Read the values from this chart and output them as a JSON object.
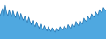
{
  "values": [
    88,
    95,
    102,
    85,
    108,
    95,
    88,
    100,
    92,
    87,
    98,
    90,
    85,
    96,
    88,
    82,
    93,
    85,
    80,
    88,
    82,
    76,
    86,
    78,
    72,
    80,
    73,
    68,
    77,
    70,
    65,
    73,
    67,
    62,
    70,
    64,
    60,
    68,
    63,
    59,
    66,
    61,
    58,
    65,
    62,
    60,
    68,
    64,
    62,
    70,
    66,
    63,
    72,
    68,
    65,
    74,
    70,
    68,
    78,
    73,
    70,
    80,
    76,
    73,
    84,
    80,
    78,
    88,
    84,
    82,
    92,
    88,
    86,
    96,
    92,
    90,
    100,
    96,
    94,
    104,
    100,
    98
  ],
  "fill_color": "#4fa8e0",
  "line_color": "#1a6faf",
  "background_color": "#ffffff",
  "ylim_min": 45,
  "ylim_max": 118
}
